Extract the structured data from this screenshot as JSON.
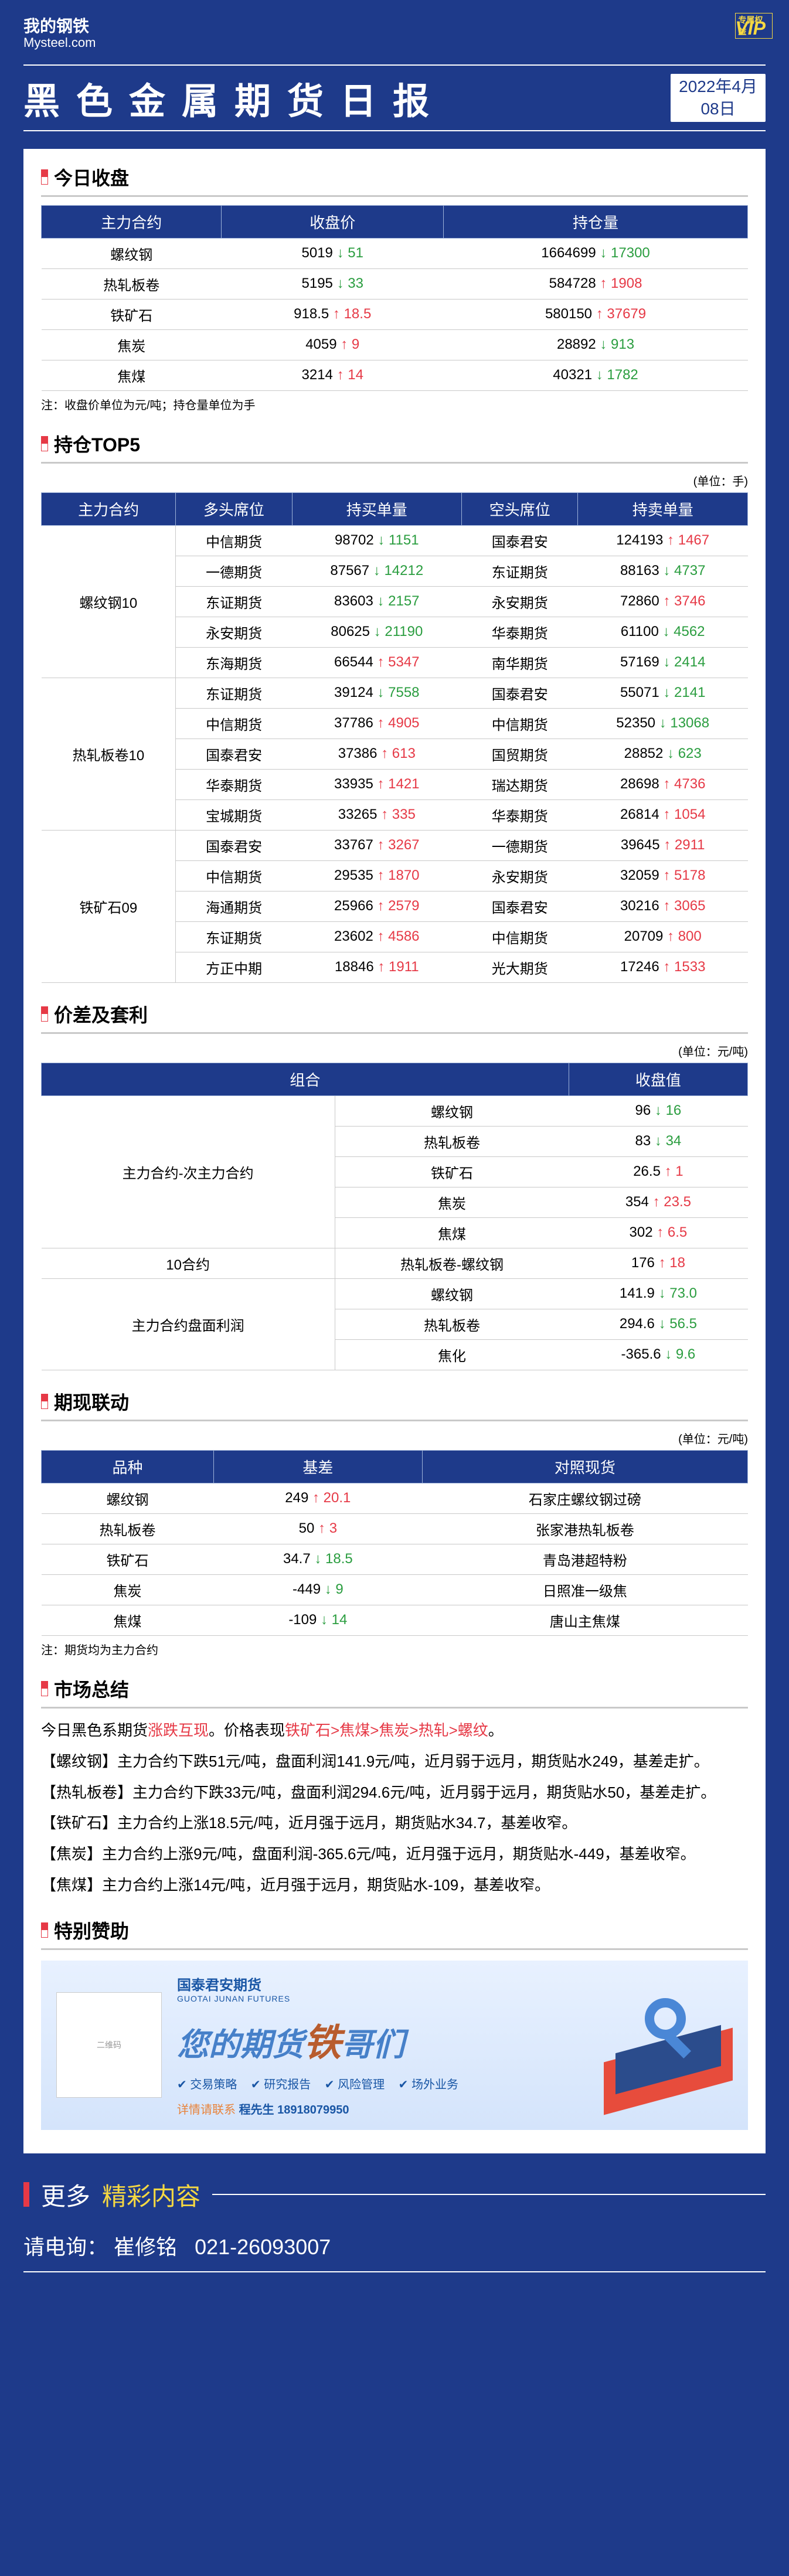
{
  "header": {
    "logo_ch": "我的钢铁",
    "logo_en": "Mysteel.com",
    "vip": "VIP",
    "title": "黑色金属期货日报",
    "date_line1": "2022年4月",
    "date_line2": "08日"
  },
  "s_close": {
    "title": "今日收盘",
    "cols": [
      "主力合约",
      "收盘价",
      "持仓量"
    ],
    "rows": [
      {
        "c": "螺纹钢",
        "p": "5019",
        "pd": "51",
        "pdir": "dn",
        "v": "1664699",
        "vd": "17300",
        "vdir": "dn"
      },
      {
        "c": "热轧板卷",
        "p": "5195",
        "pd": "33",
        "pdir": "dn",
        "v": "584728",
        "vd": "1908",
        "vdir": "up"
      },
      {
        "c": "铁矿石",
        "p": "918.5",
        "pd": "18.5",
        "pdir": "up",
        "v": "580150",
        "vd": "37679",
        "vdir": "up"
      },
      {
        "c": "焦炭",
        "p": "4059",
        "pd": "9",
        "pdir": "up",
        "v": "28892",
        "vd": "913",
        "vdir": "dn"
      },
      {
        "c": "焦煤",
        "p": "3214",
        "pd": "14",
        "pdir": "up",
        "v": "40321",
        "vd": "1782",
        "vdir": "dn"
      }
    ],
    "note": "注：收盘价单位为元/吨；持仓量单位为手"
  },
  "s_top5": {
    "title": "持仓TOP5",
    "unit": "(单位：手)",
    "cols": [
      "主力合约",
      "多头席位",
      "持买单量",
      "空头席位",
      "持卖单量"
    ],
    "groups": [
      {
        "name": "螺纹钢10",
        "rows": [
          {
            "l": "中信期货",
            "lv": "98702",
            "ld": "1151",
            "ldir": "dn",
            "s": "国泰君安",
            "sv": "124193",
            "sd": "1467",
            "sdir": "up"
          },
          {
            "l": "一德期货",
            "lv": "87567",
            "ld": "14212",
            "ldir": "dn",
            "s": "东证期货",
            "sv": "88163",
            "sd": "4737",
            "sdir": "dn"
          },
          {
            "l": "东证期货",
            "lv": "83603",
            "ld": "2157",
            "ldir": "dn",
            "s": "永安期货",
            "sv": "72860",
            "sd": "3746",
            "sdir": "up"
          },
          {
            "l": "永安期货",
            "lv": "80625",
            "ld": "21190",
            "ldir": "dn",
            "s": "华泰期货",
            "sv": "61100",
            "sd": "4562",
            "sdir": "dn"
          },
          {
            "l": "东海期货",
            "lv": "66544",
            "ld": "5347",
            "ldir": "up",
            "s": "南华期货",
            "sv": "57169",
            "sd": "2414",
            "sdir": "dn"
          }
        ]
      },
      {
        "name": "热轧板卷10",
        "rows": [
          {
            "l": "东证期货",
            "lv": "39124",
            "ld": "7558",
            "ldir": "dn",
            "s": "国泰君安",
            "sv": "55071",
            "sd": "2141",
            "sdir": "dn"
          },
          {
            "l": "中信期货",
            "lv": "37786",
            "ld": "4905",
            "ldir": "up",
            "s": "中信期货",
            "sv": "52350",
            "sd": "13068",
            "sdir": "dn"
          },
          {
            "l": "国泰君安",
            "lv": "37386",
            "ld": "613",
            "ldir": "up",
            "s": "国贸期货",
            "sv": "28852",
            "sd": "623",
            "sdir": "dn"
          },
          {
            "l": "华泰期货",
            "lv": "33935",
            "ld": "1421",
            "ldir": "up",
            "s": "瑞达期货",
            "sv": "28698",
            "sd": "4736",
            "sdir": "up"
          },
          {
            "l": "宝城期货",
            "lv": "33265",
            "ld": "335",
            "ldir": "up",
            "s": "华泰期货",
            "sv": "26814",
            "sd": "1054",
            "sdir": "up"
          }
        ]
      },
      {
        "name": "铁矿石09",
        "rows": [
          {
            "l": "国泰君安",
            "lv": "33767",
            "ld": "3267",
            "ldir": "up",
            "s": "一德期货",
            "sv": "39645",
            "sd": "2911",
            "sdir": "up"
          },
          {
            "l": "中信期货",
            "lv": "29535",
            "ld": "1870",
            "ldir": "up",
            "s": "永安期货",
            "sv": "32059",
            "sd": "5178",
            "sdir": "up"
          },
          {
            "l": "海通期货",
            "lv": "25966",
            "ld": "2579",
            "ldir": "up",
            "s": "国泰君安",
            "sv": "30216",
            "sd": "3065",
            "sdir": "up"
          },
          {
            "l": "东证期货",
            "lv": "23602",
            "ld": "4586",
            "ldir": "up",
            "s": "中信期货",
            "sv": "20709",
            "sd": "800",
            "sdir": "up"
          },
          {
            "l": "方正中期",
            "lv": "18846",
            "ld": "1911",
            "ldir": "up",
            "s": "光大期货",
            "sv": "17246",
            "sd": "1533",
            "sdir": "up"
          }
        ]
      }
    ]
  },
  "s_spread": {
    "title": "价差及套利",
    "unit": "(单位：元/吨)",
    "cols": [
      "组合",
      "",
      "收盘值"
    ],
    "groups": [
      {
        "name": "主力合约-次主力合约",
        "rows": [
          {
            "n": "螺纹钢",
            "v": "96",
            "d": "16",
            "dir": "dn"
          },
          {
            "n": "热轧板卷",
            "v": "83",
            "d": "34",
            "dir": "dn"
          },
          {
            "n": "铁矿石",
            "v": "26.5",
            "d": "1",
            "dir": "up"
          },
          {
            "n": "焦炭",
            "v": "354",
            "d": "23.5",
            "dir": "up"
          },
          {
            "n": "焦煤",
            "v": "302",
            "d": "6.5",
            "dir": "up"
          }
        ]
      },
      {
        "name": "10合约",
        "rows": [
          {
            "n": "热轧板卷-螺纹钢",
            "v": "176",
            "d": "18",
            "dir": "up"
          }
        ]
      },
      {
        "name": "主力合约盘面利润",
        "rows": [
          {
            "n": "螺纹钢",
            "v": "141.9",
            "d": "73.0",
            "dir": "dn"
          },
          {
            "n": "热轧板卷",
            "v": "294.6",
            "d": "56.5",
            "dir": "dn"
          },
          {
            "n": "焦化",
            "v": "-365.6",
            "d": "9.6",
            "dir": "dn"
          }
        ]
      }
    ]
  },
  "s_basis": {
    "title": "期现联动",
    "unit": "(单位：元/吨)",
    "cols": [
      "品种",
      "基差",
      "对照现货"
    ],
    "rows": [
      {
        "n": "螺纹钢",
        "v": "249",
        "d": "20.1",
        "dir": "up",
        "r": "石家庄螺纹钢过磅"
      },
      {
        "n": "热轧板卷",
        "v": "50",
        "d": "3",
        "dir": "up",
        "r": "张家港热轧板卷"
      },
      {
        "n": "铁矿石",
        "v": "34.7",
        "d": "18.5",
        "dir": "dn",
        "r": "青岛港超特粉"
      },
      {
        "n": "焦炭",
        "v": "-449",
        "d": "9",
        "dir": "dn",
        "r": "日照准一级焦"
      },
      {
        "n": "焦煤",
        "v": "-109",
        "d": "14",
        "dir": "dn",
        "r": "唐山主焦煤"
      }
    ],
    "note": "注：期货均为主力合约"
  },
  "s_summary": {
    "title": "市场总结",
    "l1a": "今日黑色系期货",
    "l1b": "涨跌互现",
    "l1c": "。价格表现",
    "l1d": "铁矿石>焦煤>焦炭>热轧>螺纹",
    "l1e": "。",
    "p2": "【螺纹钢】主力合约下跌51元/吨，盘面利润141.9元/吨，近月弱于远月，期货贴水249，基差走扩。",
    "p3": "【热轧板卷】主力合约下跌33元/吨，盘面利润294.6元/吨，近月弱于远月，期货贴水50，基差走扩。",
    "p4": "【铁矿石】主力合约上涨18.5元/吨，近月强于远月，期货贴水34.7，基差收窄。",
    "p5": "【焦炭】主力合约上涨9元/吨，盘面利润-365.6元/吨，近月强于远月，期货贴水-449，基差收窄。",
    "p6": "【焦煤】主力合约上涨14元/吨，近月强于远月，期货贴水-109，基差收窄。"
  },
  "s_sponsor": {
    "title": "特别赞助",
    "brand": "国泰君安期货",
    "brand_en": "GUOTAI JUNAN FUTURES",
    "slogan_a": "您的期货",
    "slogan_b": "铁",
    "slogan_c": "哥们",
    "tags": [
      "交易策略",
      "研究报告",
      "风险管理",
      "场外业务"
    ],
    "contact_lbl": "详情请联系",
    "contact_val": "程先生 18918079950",
    "qr": "二维码"
  },
  "footer": {
    "more1": "更多",
    "more2": "精彩内容",
    "contact_lbl": "请电询：",
    "contact_name": "崔修铭",
    "contact_num": "021-26093007"
  }
}
